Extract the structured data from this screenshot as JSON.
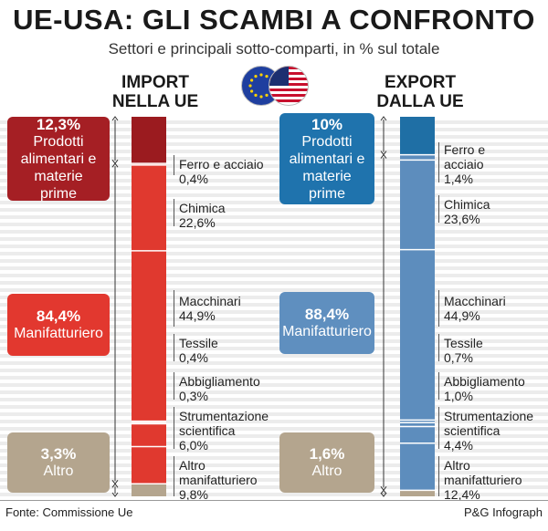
{
  "title": "UE-USA: GLI SCAMBI A CONFRONTO",
  "subtitle": "Settori e principali sotto-comparti, in % sul totale",
  "import": {
    "header": [
      "IMPORT",
      "NELLA UE"
    ],
    "boxes": [
      {
        "pct": "12,3%",
        "label": "Prodotti alimentari e materie prime"
      },
      {
        "pct": "84,4%",
        "label": "Manifatturiero"
      },
      {
        "pct": "3,3%",
        "label": "Altro"
      }
    ],
    "sublabels": [
      {
        "name": "Ferro e acciaio",
        "value": "0,4%"
      },
      {
        "name": "Chimica",
        "value": "22,6%"
      },
      {
        "name": "Macchinari",
        "value": "44,9%"
      },
      {
        "name": "Tessile",
        "value": "0,4%"
      },
      {
        "name": "Abbigliamento",
        "value": "0,3%"
      },
      {
        "name": "Strumentazione scientifica",
        "value": "6,0%"
      },
      {
        "name": "Altro manifatturiero",
        "value": "9,8%"
      }
    ]
  },
  "export": {
    "header": [
      "EXPORT",
      "DALLA UE"
    ],
    "boxes": [
      {
        "pct": "10%",
        "label": "Prodotti alimentari e materie prime"
      },
      {
        "pct": "88,4%",
        "label": "Manifatturiero"
      },
      {
        "pct": "1,6%",
        "label": "Altro"
      }
    ],
    "sublabels": [
      {
        "name": "Ferro e acciaio",
        "value": "1,4%"
      },
      {
        "name": "Chimica",
        "value": "23,6%"
      },
      {
        "name": "Macchinari",
        "value": "44,9%"
      },
      {
        "name": "Tessile",
        "value": "0,7%"
      },
      {
        "name": "Abbigliamento",
        "value": "1,0%"
      },
      {
        "name": "Strumentazione scientifica",
        "value": "4,4%"
      },
      {
        "name": "Altro manifatturiero",
        "value": "12,4%"
      }
    ]
  },
  "footer": {
    "source": "Fonte: Commissione Ue",
    "credit": "P&G Infograph"
  },
  "colors": {
    "import_food": "#9b1b1f",
    "import_manuf": "#e0392f",
    "export_food": "#1f6fa5",
    "export_manuf": "#5d8dbd",
    "altro": "#b4a58e",
    "import_box_food": "#a51f24",
    "import_box_manuf": "#e2382f",
    "export_box_food": "#1f73ad",
    "export_box_manuf": "#5f8fbf"
  },
  "chart_data": [
    {
      "type": "bar",
      "title": "IMPORT NELLA UE",
      "stacked": true,
      "series": [
        {
          "name": "Prodotti alimentari e materie prime",
          "values": [
            12.3
          ]
        },
        {
          "name": "Ferro e acciaio",
          "values": [
            0.4
          ]
        },
        {
          "name": "Chimica",
          "values": [
            22.6
          ]
        },
        {
          "name": "Macchinari",
          "values": [
            44.9
          ]
        },
        {
          "name": "Tessile",
          "values": [
            0.4
          ]
        },
        {
          "name": "Abbigliamento",
          "values": [
            0.3
          ]
        },
        {
          "name": "Strumentazione scientifica",
          "values": [
            6.0
          ]
        },
        {
          "name": "Altro manifatturiero",
          "values": [
            9.8
          ]
        },
        {
          "name": "Altro",
          "values": [
            3.3
          ]
        }
      ]
    },
    {
      "type": "bar",
      "title": "EXPORT DALLA UE",
      "stacked": true,
      "series": [
        {
          "name": "Prodotti alimentari e materie prime",
          "values": [
            10.0
          ]
        },
        {
          "name": "Ferro e acciaio",
          "values": [
            1.4
          ]
        },
        {
          "name": "Chimica",
          "values": [
            23.6
          ]
        },
        {
          "name": "Macchinari",
          "values": [
            44.9
          ]
        },
        {
          "name": "Tessile",
          "values": [
            0.7
          ]
        },
        {
          "name": "Abbigliamento",
          "values": [
            1.0
          ]
        },
        {
          "name": "Strumentazione scientifica",
          "values": [
            4.4
          ]
        },
        {
          "name": "Altro manifatturiero",
          "values": [
            12.4
          ]
        },
        {
          "name": "Altro",
          "values": [
            1.6
          ]
        }
      ]
    }
  ]
}
